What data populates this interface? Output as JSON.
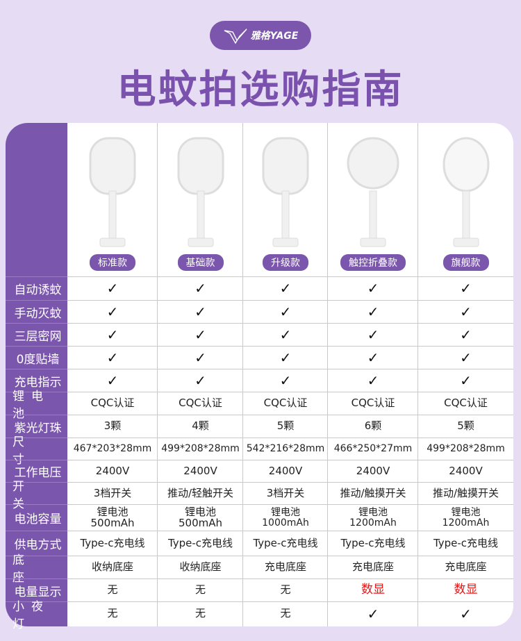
{
  "brand": {
    "logo_text": "雅格YAGE"
  },
  "title": "电蚊拍选购指南",
  "accent": "#7b56ad",
  "products": [
    {
      "name": "标准款",
      "shape": "rect"
    },
    {
      "name": "基础款",
      "shape": "rect"
    },
    {
      "name": "升级款",
      "shape": "rect"
    },
    {
      "name": "触控折叠款",
      "shape": "round"
    },
    {
      "name": "旗舰款",
      "shape": "oval"
    }
  ],
  "rows": [
    {
      "label": "自动诱蚊",
      "values": [
        "✓",
        "✓",
        "✓",
        "✓",
        "✓"
      ]
    },
    {
      "label": "手动灭蚊",
      "values": [
        "✓",
        "✓",
        "✓",
        "✓",
        "✓"
      ]
    },
    {
      "label": "三层密网",
      "values": [
        "✓",
        "✓",
        "✓",
        "✓",
        "✓"
      ]
    },
    {
      "label": "0度贴墙",
      "values": [
        "✓",
        "✓",
        "✓",
        "✓",
        "✓"
      ]
    },
    {
      "label": "充电指示",
      "values": [
        "✓",
        "✓",
        "✓",
        "✓",
        "✓"
      ]
    },
    {
      "label": "锂电池",
      "values": [
        "CQC认证",
        "CQC认证",
        "CQC认证",
        "CQC认证",
        "CQC认证"
      ]
    },
    {
      "label": "紫光灯珠",
      "values": [
        "3颗",
        "4颗",
        "5颗",
        "6颗",
        "5颗"
      ]
    },
    {
      "label": "尺寸",
      "values": [
        "467*203*28mm",
        "499*208*28mm",
        "542*216*28mm",
        "466*250*27mm",
        "499*208*28mm"
      ]
    },
    {
      "label": "工作电压",
      "values": [
        "2400V",
        "2400V",
        "2400V",
        "2400V",
        "2400V"
      ]
    },
    {
      "label": "开关",
      "values": [
        "3档开关",
        "推动/轻触开关",
        "3档开关",
        "推动/触摸开关",
        "推动/触摸开关"
      ]
    },
    {
      "label": "电池容量",
      "values": [
        "锂电池\n500mAh",
        "锂电池\n500mAh",
        "锂电池\n1000mAh",
        "锂电池\n1200mAh",
        "锂电池\n1200mAh"
      ]
    },
    {
      "label": "供电方式",
      "values": [
        "Type-c充电线",
        "Type-c充电线",
        "Type-c充电线",
        "Type-c充电线",
        "Type-c充电线"
      ]
    },
    {
      "label": "底座",
      "values": [
        "收纳底座",
        "收纳底座",
        "充电底座",
        "充电底座",
        "充电底座"
      ]
    },
    {
      "label": "电量显示",
      "values": [
        "无",
        "无",
        "无",
        "数显",
        "数显"
      ],
      "highlight": [
        false,
        false,
        false,
        true,
        true
      ],
      "highlight_color": "#f01010"
    },
    {
      "label": "小夜灯",
      "values": [
        "无",
        "无",
        "无",
        "✓",
        "✓"
      ]
    }
  ]
}
